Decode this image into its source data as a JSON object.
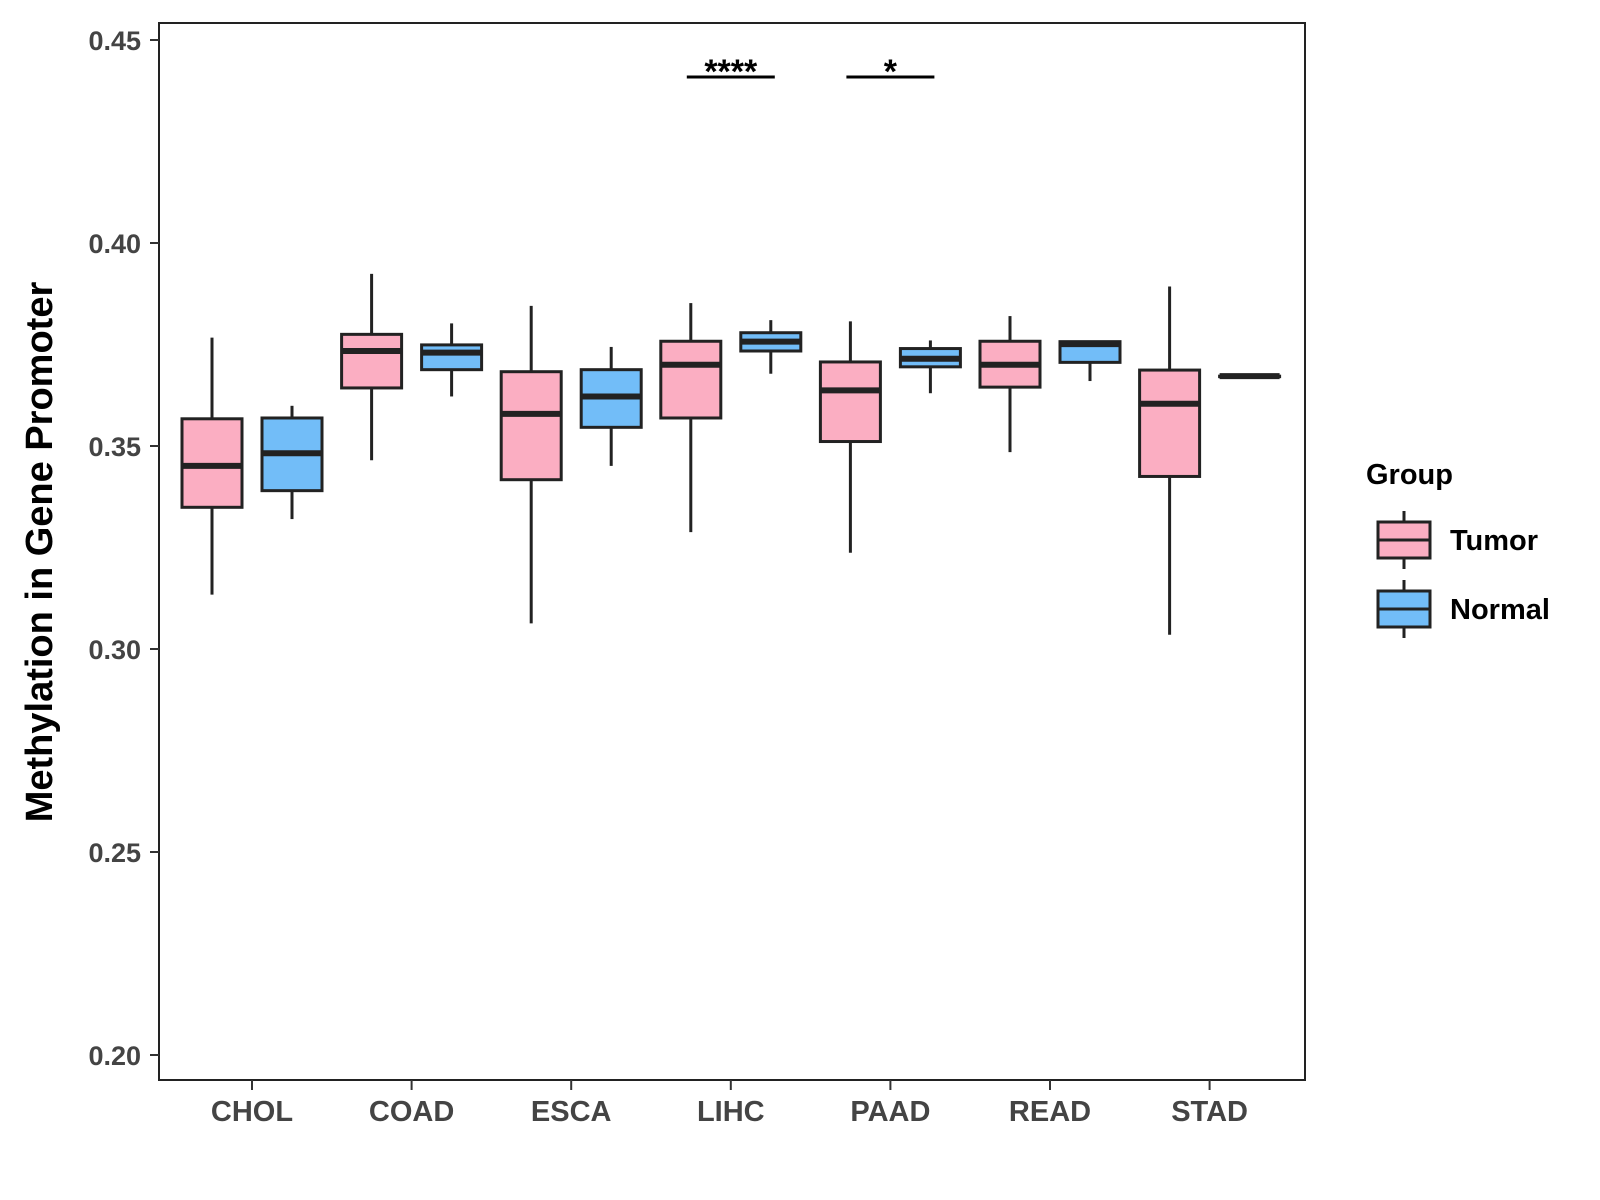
{
  "chart_data": {
    "type": "boxplot",
    "ylabel": "Methylation in Gene Promoter",
    "xlabel": "",
    "ylim": [
      0.195,
      0.454
    ],
    "yticks": [
      "0.20",
      "0.25",
      "0.30",
      "0.35",
      "0.40",
      "0.45"
    ],
    "categories": [
      "CHOL",
      "COAD",
      "ESCA",
      "LIHC",
      "PAAD",
      "READ",
      "STAD"
    ],
    "legend": {
      "title": "Group",
      "placement": "right",
      "items": [
        {
          "name": "Tumor",
          "color": "#FBAEC2"
        },
        {
          "name": "Normal",
          "color": "#72BDF8"
        }
      ]
    },
    "series": [
      {
        "name": "Tumor",
        "color": "#FBAEC2",
        "boxes": [
          {
            "category": "CHOL",
            "min": 0.3134,
            "q1": 0.3349,
            "median": 0.3451,
            "q3": 0.3567,
            "max": 0.3767
          },
          {
            "category": "COAD",
            "min": 0.3465,
            "q1": 0.3643,
            "median": 0.3734,
            "q3": 0.3775,
            "max": 0.3924
          },
          {
            "category": "ESCA",
            "min": 0.3063,
            "q1": 0.3417,
            "median": 0.3579,
            "q3": 0.3683,
            "max": 0.3845
          },
          {
            "category": "LIHC",
            "min": 0.3288,
            "q1": 0.3569,
            "median": 0.37,
            "q3": 0.3758,
            "max": 0.3852
          },
          {
            "category": "PAAD",
            "min": 0.3237,
            "q1": 0.3511,
            "median": 0.3637,
            "q3": 0.3707,
            "max": 0.3807
          },
          {
            "category": "READ",
            "min": 0.3485,
            "q1": 0.3645,
            "median": 0.37,
            "q3": 0.3758,
            "max": 0.382
          },
          {
            "category": "STAD",
            "min": 0.3035,
            "q1": 0.3425,
            "median": 0.3604,
            "q3": 0.3687,
            "max": 0.3893
          }
        ]
      },
      {
        "name": "Normal",
        "color": "#72BDF8",
        "boxes": [
          {
            "category": "CHOL",
            "min": 0.332,
            "q1": 0.339,
            "median": 0.3482,
            "q3": 0.3569,
            "max": 0.3599
          },
          {
            "category": "COAD",
            "min": 0.3622,
            "q1": 0.3688,
            "median": 0.373,
            "q3": 0.3749,
            "max": 0.3802
          },
          {
            "category": "ESCA",
            "min": 0.3451,
            "q1": 0.3546,
            "median": 0.3622,
            "q3": 0.3688,
            "max": 0.3744
          },
          {
            "category": "LIHC",
            "min": 0.3678,
            "q1": 0.3734,
            "median": 0.3757,
            "q3": 0.3779,
            "max": 0.381
          },
          {
            "category": "PAAD",
            "min": 0.363,
            "q1": 0.3695,
            "median": 0.3715,
            "q3": 0.374,
            "max": 0.376
          },
          {
            "category": "READ",
            "min": 0.366,
            "q1": 0.3706,
            "median": 0.3751,
            "q3": 0.3757,
            "max": 0.3757
          },
          {
            "category": "STAD",
            "min": 0.3672,
            "q1": 0.3672,
            "median": 0.3672,
            "q3": 0.3672,
            "max": 0.3672
          }
        ]
      }
    ],
    "annotations": [
      {
        "category": "LIHC",
        "label": "****",
        "y": 0.4409
      },
      {
        "category": "PAAD",
        "label": "*",
        "y": 0.4409
      }
    ]
  }
}
